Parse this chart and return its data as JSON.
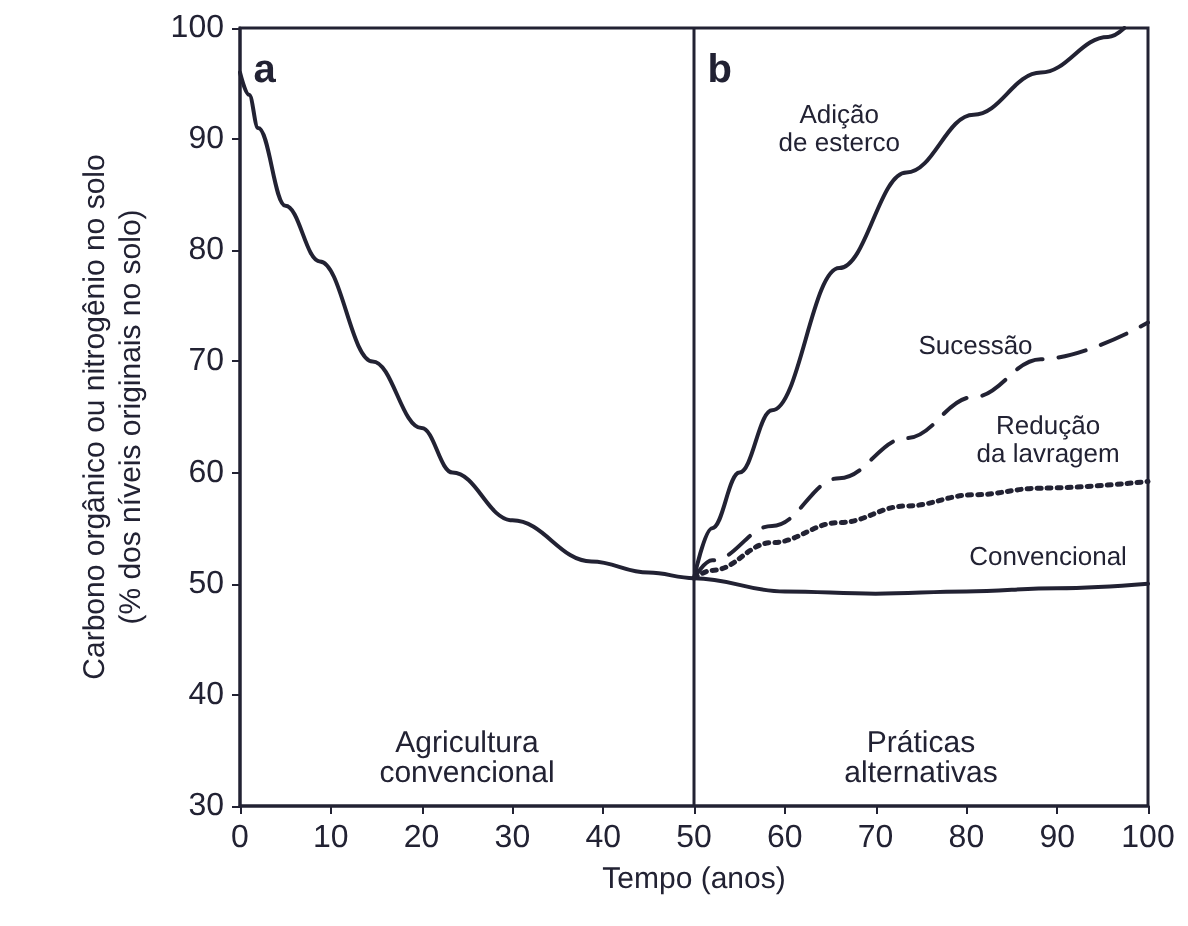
{
  "chart_data": {
    "type": "line",
    "xlabel": "Tempo (anos)",
    "ylabel": "Carbono orgânico ou nitrogênio no solo\n(% dos níveis originais no solo)",
    "xlim": [
      0,
      100
    ],
    "xticks": [
      0,
      10,
      20,
      30,
      40,
      50,
      60,
      70,
      80,
      90,
      100
    ],
    "ylim": [
      30,
      100
    ],
    "yticks": [
      30,
      40,
      50,
      60,
      70,
      80,
      90,
      100
    ],
    "grid": false,
    "legend": false,
    "marker": "none",
    "annotations": [
      "a",
      "b",
      "Agricultura\nconvencional",
      "Práticas\nalternativas"
    ],
    "ref_lines": [
      {
        "axis": "x",
        "value": 50,
        "label": null,
        "color": "#222233"
      }
    ],
    "series": [
      {
        "name": "Adição de esterco",
        "color": "#222233",
        "line_style": "solid",
        "x": [
          50,
          52,
          55,
          58.6,
          66,
          73.4,
          80.8,
          88.2,
          95.6,
          97.4
        ],
        "values": [
          50.5,
          55,
          60,
          65.6,
          78.4,
          87,
          92.2,
          96,
          99.2,
          100
        ]
      },
      {
        "name": "Sucessão",
        "color": "#222233",
        "line_style": "dashed",
        "x": [
          50,
          52,
          58.6,
          66,
          73.4,
          80.8,
          88.2,
          100
        ],
        "values": [
          50.5,
          52.1,
          55.2,
          59.5,
          63.1,
          66.8,
          70.2,
          73.5
        ]
      },
      {
        "name": "Redução da lavragem",
        "color": "#222233",
        "line_style": "dotted",
        "x": [
          50,
          52,
          58.6,
          66,
          73.4,
          80.8,
          88.2,
          100
        ],
        "values": [
          50.5,
          51.2,
          53.7,
          55.5,
          57,
          58,
          58.6,
          59.2
        ]
      },
      {
        "name": "Convencional",
        "color": "#222233",
        "line_style": "solid",
        "x": [
          0,
          1,
          2,
          5,
          8.8,
          14.6,
          20,
          23.4,
          30,
          38.7,
          45,
          50,
          60,
          70,
          80,
          90,
          100
        ],
        "values": [
          96,
          94,
          91,
          84,
          79,
          70,
          64,
          60,
          55.7,
          52,
          51,
          50.5,
          49.3,
          49.1,
          49.3,
          49.6,
          50
        ]
      }
    ]
  }
}
